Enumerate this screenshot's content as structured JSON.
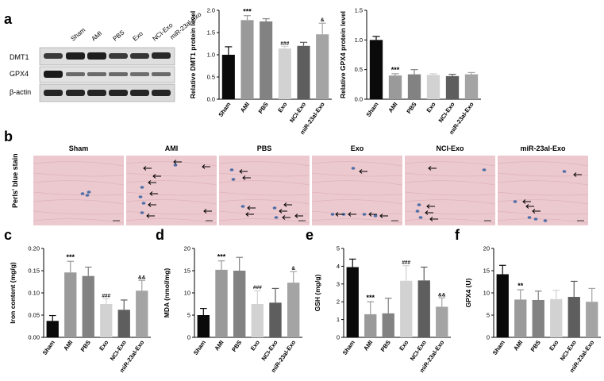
{
  "panel_letters": [
    "a",
    "b",
    "c",
    "d",
    "e",
    "f"
  ],
  "groups": [
    "Sham",
    "AMI",
    "PBS",
    "Exo",
    "NCI-Exo",
    "miR-23al-Exo"
  ],
  "colors": {
    "Sham": "#0a0a0a",
    "AMI": "#9a9a9a",
    "PBS": "#828282",
    "Exo": "#d2d2d2",
    "NCI-Exo": "#5e5e5e",
    "miR-23al-Exo": "#a4a4a4",
    "tissue": "#ecc9cf",
    "stain": "#4f6fa6"
  },
  "blot": {
    "proteins": [
      "DMT1",
      "GPX4",
      "β-actin"
    ]
  },
  "stain": {
    "side_label": "Perls' blue stain",
    "panels": [
      "Sham",
      "AMI",
      "PBS",
      "Exo",
      "NCI-Exo",
      "miR-23al-Exo"
    ],
    "arrow_counts": [
      0,
      9,
      8,
      5,
      4,
      4
    ],
    "icon": "arrow-left-icon"
  },
  "chart_data": [
    {
      "id": "a1",
      "type": "bar",
      "ylabel": "Relative DMT1 protein level",
      "categories": [
        "Sham",
        "AMI",
        "PBS",
        "Exo",
        "NCI-Exo",
        "miR-23al-Exo"
      ],
      "values": [
        1.0,
        1.78,
        1.75,
        1.14,
        1.2,
        1.46
      ],
      "errors": [
        0.18,
        0.1,
        0.06,
        0.05,
        0.08,
        0.25
      ],
      "annotations": [
        "",
        "***",
        "",
        "###",
        "",
        "&"
      ],
      "ylim": [
        0,
        2.0
      ],
      "yticks": [
        0.0,
        0.5,
        1.0,
        1.5,
        2.0
      ]
    },
    {
      "id": "a2",
      "type": "bar",
      "ylabel": "Relative GPX4 protein level",
      "categories": [
        "Sham",
        "AMI",
        "PBS",
        "Exo",
        "NCI-Exo",
        "miR-23al-Exo"
      ],
      "values": [
        1.0,
        0.4,
        0.42,
        0.41,
        0.39,
        0.42
      ],
      "errors": [
        0.06,
        0.03,
        0.08,
        0.02,
        0.03,
        0.03
      ],
      "annotations": [
        "",
        "***",
        "",
        "",
        "",
        ""
      ],
      "ylim": [
        0,
        1.5
      ],
      "yticks": [
        0.0,
        0.5,
        1.0,
        1.5
      ]
    },
    {
      "id": "c",
      "type": "bar",
      "ylabel": "Iron content (mg/g)",
      "categories": [
        "Sham",
        "AMI",
        "PBS",
        "Exo",
        "NCI-Exo",
        "miR-23al-Exo"
      ],
      "values": [
        0.037,
        0.146,
        0.138,
        0.075,
        0.062,
        0.105
      ],
      "errors": [
        0.012,
        0.025,
        0.02,
        0.012,
        0.022,
        0.023
      ],
      "annotations": [
        "",
        "***",
        "",
        "###",
        "",
        "&&"
      ],
      "ylim": [
        0,
        0.2
      ],
      "yticks": [
        0.0,
        0.05,
        0.1,
        0.15,
        0.2
      ]
    },
    {
      "id": "d",
      "type": "bar",
      "ylabel": "MDA (nmol/mg)",
      "categories": [
        "Sham",
        "AMI",
        "PBS",
        "Exo",
        "NCI-Exo",
        "miR-23al-Exo"
      ],
      "values": [
        5.0,
        15.2,
        15.0,
        7.5,
        7.8,
        12.3
      ],
      "errors": [
        1.5,
        2.0,
        3.0,
        3.0,
        3.2,
        2.5
      ],
      "annotations": [
        "",
        "***",
        "",
        "###",
        "",
        "&"
      ],
      "ylim": [
        0,
        20
      ],
      "yticks": [
        0,
        5,
        10,
        15,
        20
      ]
    },
    {
      "id": "e",
      "type": "bar",
      "ylabel": "GSH (mg/g)",
      "categories": [
        "Sham",
        "AMI",
        "PBS",
        "Exo",
        "NCI-Exo",
        "miR-23al-Exo"
      ],
      "values": [
        3.95,
        1.3,
        1.35,
        3.18,
        3.2,
        1.72
      ],
      "errors": [
        0.45,
        0.7,
        0.85,
        0.85,
        0.75,
        0.5
      ],
      "annotations": [
        "",
        "***",
        "",
        "###",
        "",
        "&&"
      ],
      "ylim": [
        0,
        5
      ],
      "yticks": [
        0,
        1,
        2,
        3,
        4,
        5
      ]
    },
    {
      "id": "f",
      "type": "bar",
      "ylabel": "GPX4 (U)",
      "categories": [
        "Sham",
        "AMI",
        "PBS",
        "Exo",
        "NCI-Exo",
        "miR-23al-Exo"
      ],
      "values": [
        14.2,
        8.5,
        8.4,
        8.6,
        9.1,
        8.0
      ],
      "errors": [
        2.0,
        2.2,
        2.0,
        2.0,
        3.5,
        3.0
      ],
      "annotations": [
        "",
        "**",
        "",
        "",
        "",
        ""
      ],
      "ylim": [
        0,
        20
      ],
      "yticks": [
        0,
        5,
        10,
        15,
        20
      ]
    }
  ]
}
